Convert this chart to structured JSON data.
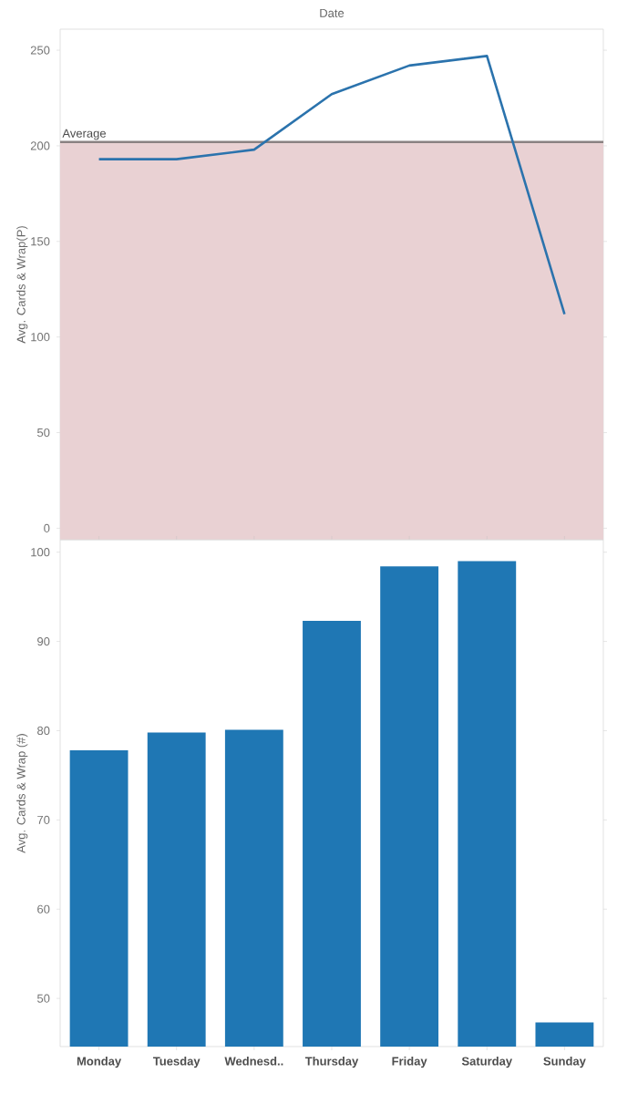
{
  "chart_data": [
    {
      "type": "line",
      "xlabel": "Date",
      "ylabel": "Avg. Cards & Wrap(P)",
      "categories": [
        null,
        null,
        null,
        null,
        null,
        null,
        null
      ],
      "values": [
        193,
        193,
        198,
        227,
        242,
        247,
        112
      ],
      "color": "#2b73ad",
      "ylim": [
        -6,
        261
      ],
      "yticks": [
        0,
        50,
        100,
        150,
        200,
        250
      ],
      "tick_labels": "y",
      "ref_lines": [
        {
          "axis": "y",
          "value": 202,
          "label": "Average",
          "color": "#8a8282"
        }
      ],
      "bands": [
        {
          "axis": "y",
          "from": -6,
          "to": 202,
          "color": "#e9d1d3"
        }
      ]
    },
    {
      "type": "bar",
      "ylabel": "Avg. Cards & Wrap (#)",
      "categories": [
        "Monday",
        "Tuesday",
        "Wednesd..",
        "Thursday",
        "Friday",
        "Saturday",
        "Sunday"
      ],
      "values": [
        77.8,
        79.8,
        80.1,
        92.3,
        98.4,
        99.0,
        47.3
      ],
      "color": "#1f77b4",
      "ylim": [
        44.6,
        101.4
      ],
      "yticks": [
        50,
        60,
        70,
        80,
        90,
        100
      ]
    }
  ]
}
